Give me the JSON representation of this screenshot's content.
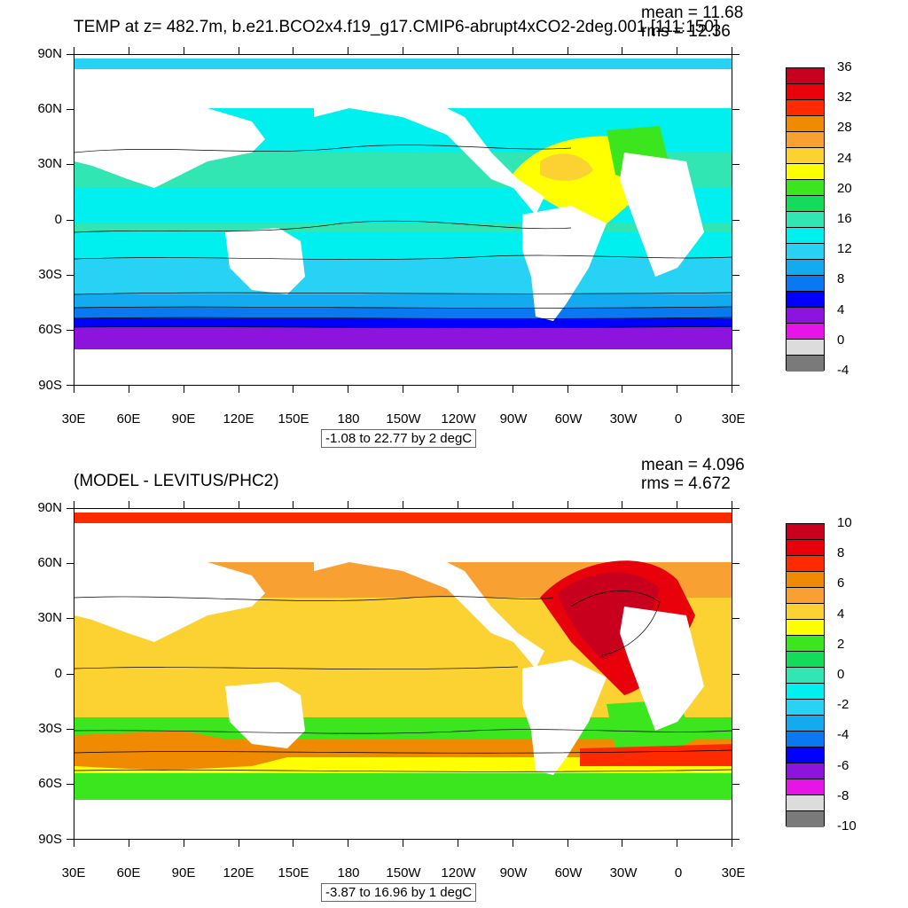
{
  "top_panel": {
    "title": "TEMP at z= 482.7m, b.e21.BCO2x4.f19_g17.CMIP6-abrupt4xCO2-2deg.001 [111:150]",
    "mean_label": "mean = 11.68",
    "rms_label": "rms = 12.36",
    "range_label": "-1.08 to 22.77 by 2 degC",
    "colorbar_labels": [
      "36",
      "32",
      "28",
      "24",
      "20",
      "16",
      "12",
      "8",
      "4",
      "0",
      "-4"
    ],
    "colorbar_colors": [
      "#c8001e",
      "#e8000a",
      "#ff2a00",
      "#f08a00",
      "#f8a032",
      "#fcd232",
      "#ffff00",
      "#3ce61e",
      "#14dc5a",
      "#32e6b4",
      "#00f0f0",
      "#28d2f5",
      "#14aaf0",
      "#0a78f0",
      "#0000ff",
      "#8c14dc",
      "#e614e6",
      "#dcdcdc",
      "#7a7a7a"
    ]
  },
  "bottom_panel": {
    "title": "(MODEL - LEVITUS/PHC2)",
    "mean_label": "mean = 4.096",
    "rms_label": "rms = 4.672",
    "range_label": "-3.87 to 16.96 by 1 degC",
    "colorbar_labels": [
      "10",
      "8",
      "6",
      "4",
      "2",
      "0",
      "-2",
      "-4",
      "-6",
      "-8",
      "-10"
    ],
    "colorbar_colors": [
      "#c8001e",
      "#e8000a",
      "#ff2a00",
      "#f08a00",
      "#f8a032",
      "#fcd232",
      "#ffff00",
      "#3ce61e",
      "#14dc5a",
      "#32e6b4",
      "#00f0f0",
      "#28d2f5",
      "#14aaf0",
      "#0a78f0",
      "#0000ff",
      "#8c14dc",
      "#e614e6",
      "#dcdcdc",
      "#7a7a7a"
    ]
  },
  "axes": {
    "lat_labels": [
      "90N",
      "60N",
      "30N",
      "0",
      "30S",
      "60S",
      "90S"
    ],
    "lon_labels": [
      "30E",
      "60E",
      "90E",
      "120E",
      "150E",
      "180",
      "150W",
      "120W",
      "90W",
      "60W",
      "30W",
      "0",
      "30E"
    ]
  },
  "colors": {
    "land": "#ffffff",
    "contour": "#000000"
  }
}
